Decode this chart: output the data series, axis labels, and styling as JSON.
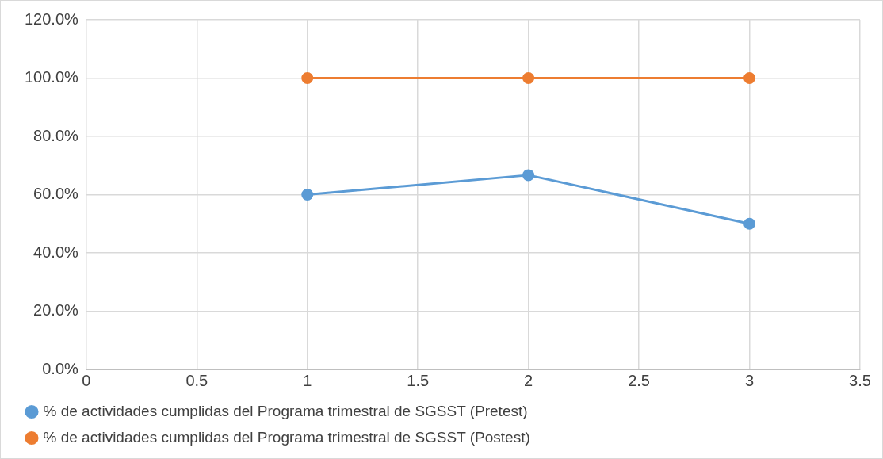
{
  "chart_data": {
    "type": "line",
    "x": [
      1,
      2,
      3
    ],
    "series": [
      {
        "name": "% de actividades cumplidas del Programa trimestral de SGSST (Pretest)",
        "color": "#5b9bd5",
        "values": [
          60,
          66.7,
          50
        ]
      },
      {
        "name": "% de actividades cumplidas del Programa trimestral de SGSST (Postest)",
        "color": "#ed7d31",
        "values": [
          100,
          100,
          100
        ]
      }
    ],
    "xlim": [
      0,
      3.5
    ],
    "xticks": [
      0,
      0.5,
      1,
      1.5,
      2,
      2.5,
      3,
      3.5
    ],
    "ylim": [
      0,
      120
    ],
    "yticks": [
      {
        "value": 0,
        "label": "0.0%"
      },
      {
        "value": 20,
        "label": "20.0%"
      },
      {
        "value": 40,
        "label": "40.0%"
      },
      {
        "value": 60,
        "label": "60.0%"
      },
      {
        "value": 80,
        "label": "80.0%"
      },
      {
        "value": 100,
        "label": "100.0%"
      },
      {
        "value": 120,
        "label": "120.0%"
      }
    ],
    "grid": true,
    "legend": "bottom",
    "marker": "circle",
    "line_style": "solid"
  }
}
